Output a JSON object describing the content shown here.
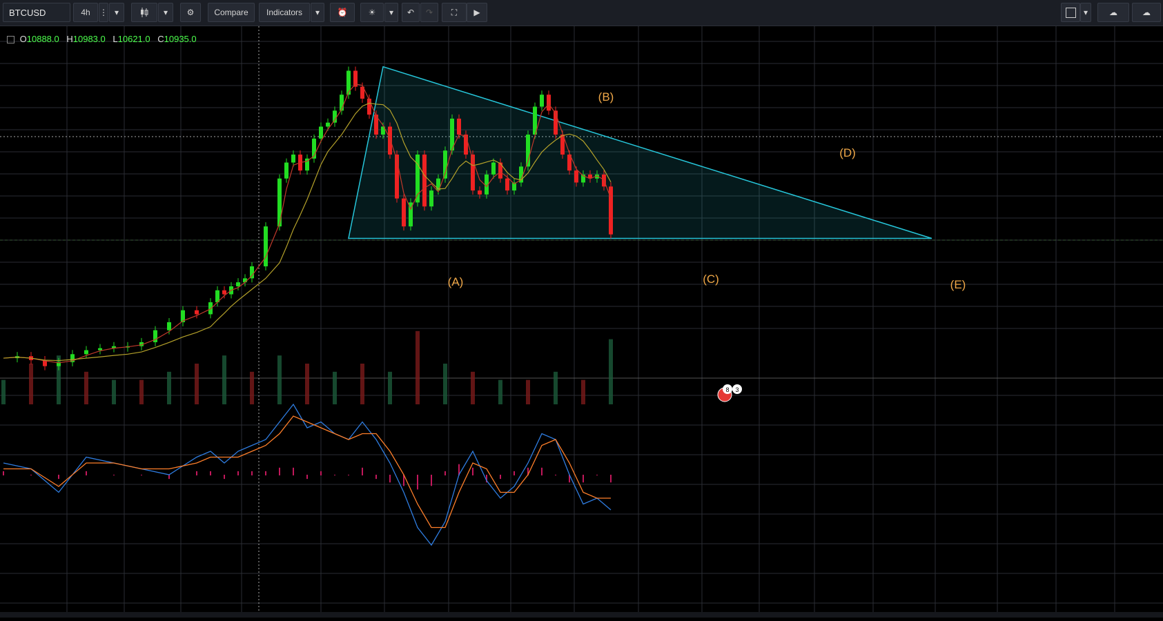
{
  "toolbar": {
    "symbol": "BTCUSD",
    "interval": "4h",
    "compare_label": "Compare",
    "indicators_label": "Indicators"
  },
  "legend": {
    "o_label": "O",
    "o_value": "10888.0",
    "h_label": "H",
    "h_value": "10983.0",
    "l_label": "L",
    "l_value": "10621.0",
    "c_label": "C",
    "c_value": "10935.0"
  },
  "wave_labels": {
    "A": "(A)",
    "B": "(B)",
    "C": "(C)",
    "D": "(D)",
    "E": "(E)"
  },
  "event_badges": {
    "first": "8",
    "second": "3"
  },
  "colors": {
    "up": "#22dd22",
    "down": "#ee2222",
    "triangle": "#26c6da",
    "wave_label": "#f0a848",
    "ma_short": "#c0392b",
    "ma_long": "#b5a22a",
    "macd": "#2f7de1",
    "signal": "#ff7f2a",
    "histogram": "#c2185b"
  },
  "chart_data": {
    "type": "line",
    "symbol": "BTCUSD",
    "interval": "4h",
    "price_path": {
      "x": [
        0,
        20,
        40,
        60,
        80,
        100,
        120,
        140,
        160,
        180,
        200,
        220,
        240,
        260,
        280,
        300,
        310,
        320,
        330,
        340,
        350,
        360,
        380,
        400,
        410,
        420,
        430,
        440,
        450,
        460,
        470,
        480,
        490,
        500,
        510,
        520,
        530,
        540,
        550,
        560,
        570,
        580,
        590,
        600,
        610,
        620,
        630,
        640,
        650,
        660,
        670,
        680,
        690,
        700,
        710,
        720,
        730,
        740,
        750,
        760,
        770,
        780,
        790,
        800,
        810,
        820,
        830,
        840,
        850,
        860,
        870,
        880
      ],
      "y": [
        6300,
        6350,
        6250,
        6100,
        6200,
        6400,
        6500,
        6550,
        6600,
        6600,
        6700,
        7000,
        7200,
        7500,
        7400,
        7700,
        8000,
        7900,
        8100,
        8200,
        8300,
        8600,
        9600,
        10800,
        11200,
        11400,
        11000,
        11300,
        11800,
        12100,
        12200,
        12500,
        12900,
        13500,
        13100,
        12800,
        12400,
        11900,
        12100,
        11400,
        10300,
        9600,
        10200,
        11400,
        10100,
        10500,
        10800,
        11500,
        12300,
        11900,
        11400,
        10500,
        10400,
        10900,
        11200,
        10800,
        10500,
        10700,
        11100,
        11900,
        12600,
        12900,
        12500,
        11900,
        11400,
        11000,
        10700,
        10900,
        10800,
        10900,
        10600,
        9400
      ]
    },
    "triangle": {
      "upper_line": {
        "x": [
          550,
          1345
        ],
        "y": [
          13600,
          9300
        ]
      },
      "lower_line": {
        "x": [
          500,
          1345
        ],
        "y": [
          9300,
          9300
        ]
      }
    },
    "volume": {
      "x": [
        0,
        40,
        80,
        120,
        160,
        200,
        240,
        280,
        320,
        360,
        400,
        440,
        480,
        520,
        560,
        600,
        640,
        680,
        720,
        760,
        800,
        840,
        880
      ],
      "values": [
        0.3,
        0.5,
        0.6,
        0.4,
        0.3,
        0.3,
        0.4,
        0.5,
        0.6,
        0.4,
        0.6,
        0.5,
        0.4,
        0.5,
        0.4,
        0.9,
        0.5,
        0.4,
        0.3,
        0.3,
        0.4,
        0.3,
        0.8
      ]
    },
    "macd": {
      "x": [
        0,
        40,
        80,
        120,
        160,
        200,
        240,
        280,
        300,
        320,
        340,
        360,
        380,
        400,
        420,
        440,
        460,
        480,
        500,
        520,
        540,
        560,
        580,
        600,
        620,
        640,
        660,
        680,
        700,
        720,
        740,
        760,
        780,
        800,
        820,
        840,
        860,
        880
      ],
      "macd_line": [
        0.2,
        0.1,
        -0.3,
        0.3,
        0.2,
        0.1,
        0.0,
        0.3,
        0.4,
        0.2,
        0.4,
        0.5,
        0.6,
        0.9,
        1.2,
        0.8,
        0.9,
        0.7,
        0.6,
        0.9,
        0.6,
        0.2,
        -0.3,
        -0.9,
        -1.2,
        -0.8,
        0.0,
        0.4,
        -0.1,
        -0.4,
        -0.2,
        0.2,
        0.7,
        0.6,
        0.0,
        -0.5,
        -0.4,
        -0.6
      ],
      "signal_line": [
        0.1,
        0.1,
        -0.2,
        0.2,
        0.2,
        0.1,
        0.1,
        0.2,
        0.3,
        0.3,
        0.3,
        0.4,
        0.5,
        0.7,
        1.0,
        0.9,
        0.8,
        0.7,
        0.6,
        0.7,
        0.7,
        0.4,
        0.0,
        -0.5,
        -0.9,
        -0.9,
        -0.3,
        0.2,
        0.1,
        -0.3,
        -0.3,
        0.0,
        0.5,
        0.6,
        0.2,
        -0.3,
        -0.4,
        -0.4
      ]
    },
    "grid": true,
    "log_scale": false
  }
}
